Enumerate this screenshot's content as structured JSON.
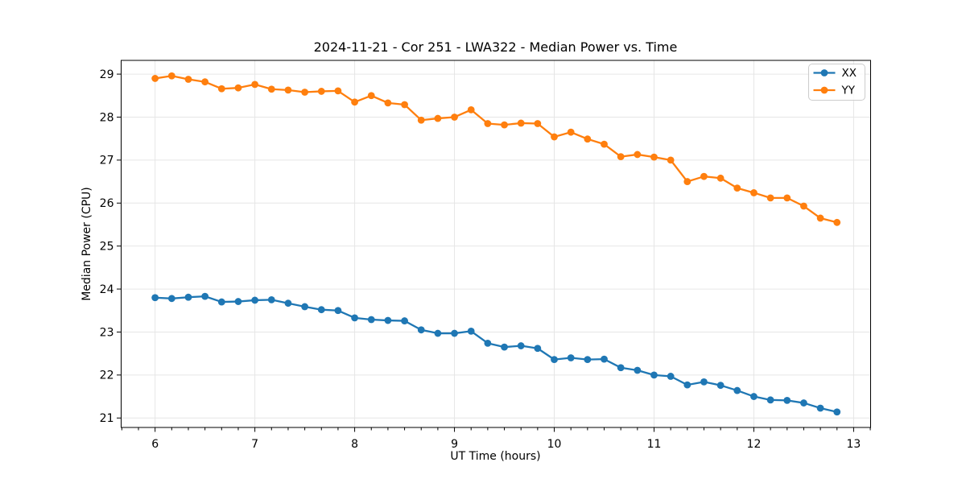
{
  "chart_data": {
    "type": "line",
    "title": "2024-11-21 - Cor 251 - LWA322 - Median Power vs. Time",
    "xlabel": "UT Time (hours)",
    "ylabel": "Median Power (CPU)",
    "x": [
      6.0,
      6.1667,
      6.3333,
      6.5,
      6.6667,
      6.8333,
      7.0,
      7.1667,
      7.3333,
      7.5,
      7.6667,
      7.8333,
      8.0,
      8.1667,
      8.3333,
      8.5,
      8.6667,
      8.8333,
      9.0,
      9.1667,
      9.3333,
      9.5,
      9.6667,
      9.8333,
      10.0,
      10.1667,
      10.3333,
      10.5,
      10.6667,
      10.8333,
      11.0,
      11.1667,
      11.3333,
      11.5,
      11.6667,
      11.8333,
      12.0,
      12.1667,
      12.3333,
      12.5,
      12.6667,
      12.8333
    ],
    "series": [
      {
        "name": "XX",
        "color": "#1f77b4",
        "marker": "circle",
        "values": [
          23.8,
          23.78,
          23.81,
          23.83,
          23.7,
          23.71,
          23.74,
          23.75,
          23.67,
          23.59,
          23.52,
          23.5,
          23.33,
          23.29,
          23.27,
          23.26,
          23.05,
          22.97,
          22.97,
          23.02,
          22.74,
          22.65,
          22.68,
          22.62,
          22.36,
          22.4,
          22.36,
          22.37,
          22.17,
          22.11,
          22.0,
          21.97,
          21.77,
          21.84,
          21.76,
          21.64,
          21.5,
          21.42,
          21.41,
          21.35,
          21.23,
          21.14
        ]
      },
      {
        "name": "YY",
        "color": "#ff7f0e",
        "marker": "circle",
        "values": [
          28.9,
          28.96,
          28.88,
          28.82,
          28.66,
          28.68,
          28.76,
          28.65,
          28.63,
          28.58,
          28.6,
          28.61,
          28.35,
          28.5,
          28.33,
          28.29,
          27.93,
          27.97,
          28.0,
          28.17,
          27.85,
          27.82,
          27.86,
          27.85,
          27.54,
          27.65,
          27.49,
          27.37,
          27.08,
          27.13,
          27.07,
          27.0,
          26.5,
          26.62,
          26.58,
          26.35,
          26.24,
          26.12,
          26.12,
          25.93,
          25.65,
          25.55
        ]
      }
    ],
    "xlim": [
      5.66,
      13.17
    ],
    "ylim": [
      20.78,
      29.32
    ],
    "xticks": [
      6,
      7,
      8,
      9,
      10,
      11,
      12,
      13
    ],
    "yticks": [
      21,
      22,
      23,
      24,
      25,
      26,
      27,
      28,
      29
    ],
    "x_minor_tick_step": 0.166667,
    "grid": true,
    "grid_color": "#e6e6e6",
    "background": "#ffffff",
    "legend_position": "upper right"
  }
}
